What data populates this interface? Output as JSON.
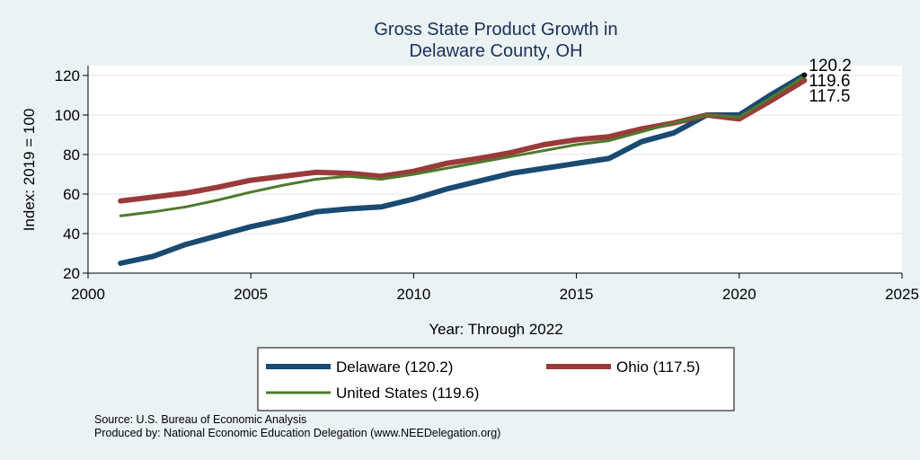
{
  "chart_data": {
    "type": "line",
    "title": [
      "Gross State Product Growth in",
      "Delaware County, OH"
    ],
    "xlabel": "Year: Through 2022",
    "ylabel": "Index: 2019 = 100",
    "xlim": [
      2000,
      2025
    ],
    "ylim": [
      20,
      125
    ],
    "xticks": [
      2000,
      2005,
      2010,
      2015,
      2020,
      2025
    ],
    "yticks": [
      20,
      40,
      60,
      80,
      100,
      120
    ],
    "grid": true,
    "legend_placement": "bottom",
    "x": [
      2001,
      2002,
      2003,
      2004,
      2005,
      2006,
      2007,
      2008,
      2009,
      2010,
      2011,
      2012,
      2013,
      2014,
      2015,
      2016,
      2017,
      2018,
      2019,
      2020,
      2021,
      2022
    ],
    "series": [
      {
        "name": "Delaware",
        "legend_label": "Delaware  (120.2)",
        "color": "#1a4a72",
        "end_label": "120.2",
        "values": [
          25,
          28.5,
          34.5,
          39,
          43.5,
          47,
          51,
          52.5,
          53.5,
          57.5,
          62.5,
          66.5,
          70.5,
          73,
          75.5,
          78,
          86.5,
          91,
          100,
          100,
          110.5,
          120.2
        ]
      },
      {
        "name": "Ohio",
        "legend_label": "Ohio (117.5)",
        "color": "#9a3a3a",
        "end_label": "117.5",
        "values": [
          56.5,
          58.5,
          60.5,
          63.5,
          67,
          69,
          71,
          70.5,
          69,
          71.5,
          75.5,
          78,
          81,
          85,
          87.5,
          89,
          93,
          96,
          100,
          98,
          107.5,
          117.5
        ]
      },
      {
        "name": "United States",
        "legend_label": "United States (119.6)",
        "color": "#4e7a2c",
        "end_label": "119.6",
        "values": [
          49,
          51,
          53.5,
          57,
          61,
          64.5,
          67.5,
          69,
          67.5,
          70,
          73,
          76,
          79,
          82,
          85,
          87,
          91.5,
          96,
          100,
          99,
          109,
          119.6
        ]
      }
    ]
  },
  "notes": {
    "source": "Source: U.S. Bureau of Economic Analysis",
    "produced_by": "Produced by: National Economic Education Delegation (www.NEEDelegation.org)"
  }
}
